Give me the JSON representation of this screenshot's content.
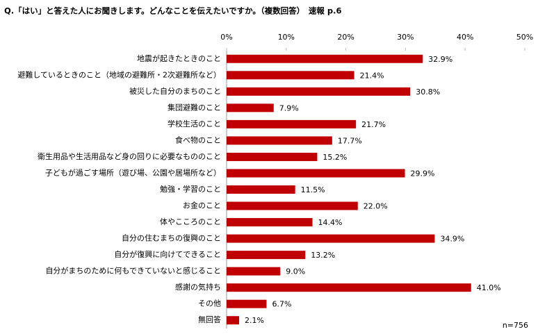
{
  "chart_data": {
    "type": "bar",
    "orientation": "horizontal",
    "title": "Q.「はい」と答えた人にお聞きします。どんなことを伝えたいですか。（複数回答）　速報 p.6",
    "categories": [
      "地震が起きたときのこと",
      "避難しているときのこと（地域の避難所・2次避難所など）",
      "被災した自分のまちのこと",
      "集団避難のこと",
      "学校生活のこと",
      "食べ物のこと",
      "衛生用品や生活用品など身の回りに必要なもののこと",
      "子どもが過ごす場所（遊び場、公園や居場所など）",
      "勉強・学習のこと",
      "お金のこと",
      "体やこころのこと",
      "自分の住むまちの復興のこと",
      "自分が復興に向けてできること",
      "自分がまちのために何もできていないと感じること",
      "感謝の気持ち",
      "その他",
      "無回答"
    ],
    "values": [
      32.9,
      21.4,
      30.8,
      7.9,
      21.7,
      17.7,
      15.2,
      29.9,
      11.5,
      22.0,
      14.4,
      34.9,
      13.2,
      9.0,
      41.0,
      6.7,
      2.1
    ],
    "value_labels": [
      "32.9%",
      "21.4%",
      "30.8%",
      "7.9%",
      "21.7%",
      "17.7%",
      "15.2%",
      "29.9%",
      "11.5%",
      "22.0%",
      "14.4%",
      "34.9%",
      "13.2%",
      "9.0%",
      "41.0%",
      "6.7%",
      "2.1%"
    ],
    "color": "#c00000",
    "xlim": [
      0,
      50
    ],
    "xticks": [
      {
        "value": 0,
        "label": "0%"
      },
      {
        "value": 10,
        "label": "10%"
      },
      {
        "value": 20,
        "label": "20%"
      },
      {
        "value": 30,
        "label": "30%"
      },
      {
        "value": 40,
        "label": "40%"
      },
      {
        "value": 50,
        "label": "50%"
      }
    ],
    "annotation": "n=756"
  }
}
